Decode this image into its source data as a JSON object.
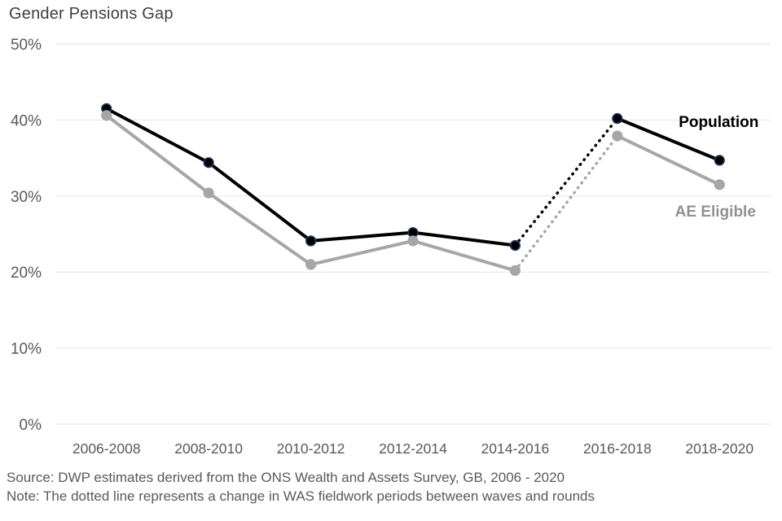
{
  "page": {
    "title": "Gender Pensions Gap"
  },
  "footer": {
    "source": "Source: DWP estimates derived from the ONS Wealth and Assets Survey, GB, 2006 - 2020",
    "note": "Note: The dotted line represents a change in WAS fieldwork periods between waves and rounds"
  },
  "chart_data": {
    "type": "line",
    "title": "Gender Pensions Gap",
    "categories": [
      "2006-2008",
      "2008-2010",
      "2010-2012",
      "2012-2014",
      "2014-2016",
      "2016-2018",
      "2018-2020"
    ],
    "series": [
      {
        "name": "Population",
        "values": [
          41.5,
          34.4,
          24.1,
          25.2,
          23.5,
          40.2,
          34.7
        ],
        "color": "#000000",
        "marker_stroke": "#1f3864",
        "label_color": "#000000"
      },
      {
        "name": "AE Eligible",
        "values": [
          40.6,
          30.4,
          21.0,
          24.1,
          20.2,
          37.9,
          31.5
        ],
        "color": "#a6a6a6",
        "marker_stroke": "#a6a6a6",
        "label_color": "#8f9194"
      }
    ],
    "dotted_segment": {
      "from_index": 4,
      "to_index": 5,
      "from": "2014-2016",
      "to": "2016-2018"
    },
    "ylim": [
      0,
      50
    ],
    "yticks": [
      {
        "value": 0,
        "label": "0%"
      },
      {
        "value": 10,
        "label": "10%"
      },
      {
        "value": 20,
        "label": "20%"
      },
      {
        "value": 30,
        "label": "30%"
      },
      {
        "value": 40,
        "label": "40%"
      },
      {
        "value": 50,
        "label": "50%"
      }
    ],
    "xlabel": "",
    "ylabel": "",
    "grid": "horizontal",
    "grid_color": "#e5e5e5",
    "legend": "end-of-line-labels"
  }
}
